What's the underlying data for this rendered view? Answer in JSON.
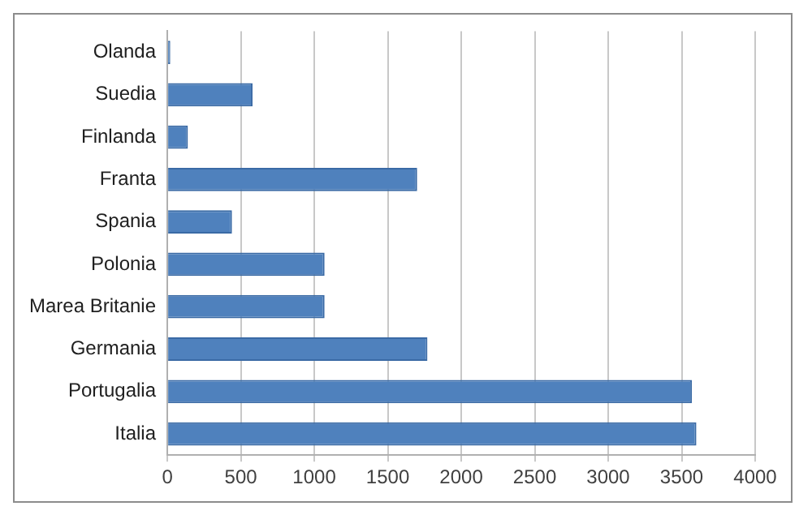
{
  "chart_data": {
    "type": "bar",
    "orientation": "horizontal",
    "categories": [
      "Olanda",
      "Suedia",
      "Finlanda",
      "Franta",
      "Spania",
      "Polonia",
      "Marea Britanie",
      "Germania",
      "Portugalia",
      "Italia"
    ],
    "values": [
      20,
      580,
      140,
      1700,
      440,
      1070,
      1070,
      1770,
      3570,
      3600
    ],
    "color": "#4f81bd",
    "xlim": [
      0,
      4000
    ],
    "xticks": [
      0,
      500,
      1000,
      1500,
      2000,
      2500,
      3000,
      3500,
      4000
    ],
    "grid": "x",
    "legend": false
  }
}
